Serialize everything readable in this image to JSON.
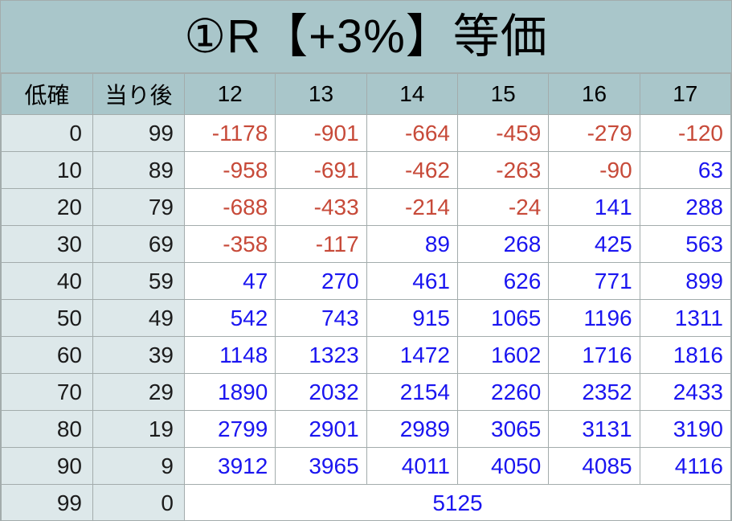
{
  "title": "①R【+3%】等価",
  "colors": {
    "header_bg": "#a9c6ca",
    "row_header_bg": "#dde8ea",
    "cell_bg": "#ffffff",
    "border": "#a3acac",
    "negative_value": "#c74a39",
    "positive_value": "#1a15f0",
    "text": "#1c1c1c"
  },
  "chart_data": {
    "type": "table",
    "title": "①R【+3%】等価",
    "column_headers": [
      "低確",
      "当り後",
      "12",
      "13",
      "14",
      "15",
      "16",
      "17"
    ],
    "rows": [
      [
        "0",
        "99",
        "-1178",
        "-901",
        "-664",
        "-459",
        "-279",
        "-120"
      ],
      [
        "10",
        "89",
        "-958",
        "-691",
        "-462",
        "-263",
        "-90",
        "63"
      ],
      [
        "20",
        "79",
        "-688",
        "-433",
        "-214",
        "-24",
        "141",
        "288"
      ],
      [
        "30",
        "69",
        "-358",
        "-117",
        "89",
        "268",
        "425",
        "563"
      ],
      [
        "40",
        "59",
        "47",
        "270",
        "461",
        "626",
        "771",
        "899"
      ],
      [
        "50",
        "49",
        "542",
        "743",
        "915",
        "1065",
        "1196",
        "1311"
      ],
      [
        "60",
        "39",
        "1148",
        "1323",
        "1472",
        "1602",
        "1716",
        "1816"
      ],
      [
        "70",
        "29",
        "1890",
        "2032",
        "2154",
        "2260",
        "2352",
        "2433"
      ],
      [
        "80",
        "19",
        "2799",
        "2901",
        "2989",
        "3065",
        "3131",
        "3190"
      ],
      [
        "90",
        "9",
        "3912",
        "3965",
        "4011",
        "4050",
        "4085",
        "4116"
      ],
      [
        "99",
        "0",
        "5125"
      ]
    ],
    "layout_hints": {
      "last_row_merged_across_value_columns": true,
      "negative_values_color": "red",
      "positive_values_color": "blue",
      "row_header_columns": 2,
      "value_columns": 6
    }
  }
}
